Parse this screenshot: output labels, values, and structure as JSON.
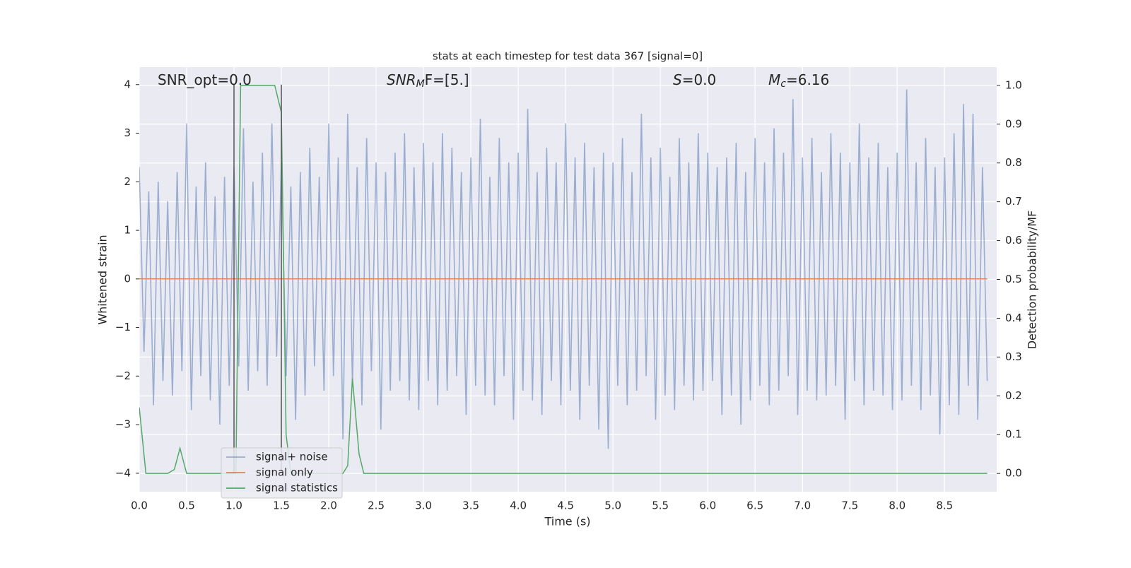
{
  "chart_data": {
    "type": "line",
    "title": "stats at each timestep for test data 367 [signal=0]",
    "xlabel": "Time (s)",
    "ylabel": "Whitened strain",
    "y2label": "Detection probability/MF",
    "annotations": [
      {
        "segments": [
          {
            "text": "SNR_opt=0.0",
            "style": "normal"
          }
        ]
      },
      {
        "segments": [
          {
            "text": "SNR",
            "style": "italic"
          },
          {
            "text": "M",
            "style": "sub"
          },
          {
            "text": "F=[5.]",
            "style": "normal"
          }
        ]
      },
      {
        "segments": [
          {
            "text": "S",
            "style": "italic"
          },
          {
            "text": "=0.0",
            "style": "normal"
          }
        ]
      },
      {
        "segments": [
          {
            "text": "M",
            "style": "italic"
          },
          {
            "text": "c",
            "style": "sub"
          },
          {
            "text": "=6.16",
            "style": "normal"
          }
        ]
      }
    ],
    "vlines": [
      1.0,
      1.5
    ],
    "vline_color": "#555555",
    "xlim": [
      0,
      9.05
    ],
    "ylim": [
      -4.38,
      4.36
    ],
    "y2lim": [
      -0.047,
      1.047
    ],
    "xticks": [
      {
        "value": 0,
        "label": "0.0"
      },
      0.5,
      {
        "value": 1,
        "label": "1.0"
      },
      1.5,
      {
        "value": 2,
        "label": "2.0"
      },
      2.5,
      {
        "value": 3,
        "label": "3.0"
      },
      3.5,
      {
        "value": 4,
        "label": "4.0"
      },
      4.5,
      {
        "value": 5,
        "label": "5.0"
      },
      5.5,
      {
        "value": 6,
        "label": "6.0"
      },
      6.5,
      {
        "value": 7,
        "label": "7.0"
      },
      7.5,
      {
        "value": 8,
        "label": "8.0"
      },
      8.5
    ],
    "yticks": [
      {
        "value": -4,
        "label": "−4"
      },
      {
        "value": -3,
        "label": "−3"
      },
      {
        "value": -2,
        "label": "−2"
      },
      {
        "value": -1,
        "label": "−1"
      },
      0,
      1,
      2,
      3,
      4
    ],
    "y2ticks": [
      {
        "value": 0,
        "label": "0.0"
      },
      0.1,
      0.2,
      0.3,
      0.4,
      0.5,
      0.6,
      0.7,
      0.8,
      0.9,
      {
        "value": 1,
        "label": "1.0"
      }
    ],
    "grid": true,
    "series": [
      {
        "name": "signal+ noise",
        "color": "#4c72b0",
        "opacity": 0.5,
        "x": [
          0,
          0.05,
          0.1,
          0.15,
          0.2,
          0.25,
          0.3,
          0.35,
          0.4,
          0.45,
          0.5,
          0.55,
          0.6,
          0.65,
          0.7,
          0.75,
          0.8,
          0.85,
          0.9,
          0.95,
          1,
          1.05,
          1.1,
          1.15,
          1.2,
          1.25,
          1.3,
          1.35,
          1.4,
          1.45,
          1.5,
          1.55,
          1.6,
          1.65,
          1.7,
          1.75,
          1.8,
          1.85,
          1.9,
          1.95,
          2,
          2.05,
          2.1,
          2.15,
          2.2,
          2.25,
          2.3,
          2.35,
          2.4,
          2.45,
          2.5,
          2.55,
          2.6,
          2.65,
          2.7,
          2.75,
          2.8,
          2.85,
          2.9,
          2.95,
          3,
          3.05,
          3.1,
          3.15,
          3.2,
          3.25,
          3.3,
          3.35,
          3.4,
          3.45,
          3.5,
          3.55,
          3.6,
          3.65,
          3.7,
          3.75,
          3.8,
          3.85,
          3.9,
          3.95,
          4,
          4.05,
          4.1,
          4.15,
          4.2,
          4.25,
          4.3,
          4.35,
          4.4,
          4.45,
          4.5,
          4.55,
          4.6,
          4.65,
          4.7,
          4.75,
          4.8,
          4.85,
          4.9,
          4.95,
          5,
          5.05,
          5.1,
          5.15,
          5.2,
          5.25,
          5.3,
          5.35,
          5.4,
          5.45,
          5.5,
          5.55,
          5.6,
          5.65,
          5.7,
          5.75,
          5.8,
          5.85,
          5.9,
          5.95,
          6,
          6.05,
          6.1,
          6.15,
          6.2,
          6.25,
          6.3,
          6.35,
          6.4,
          6.45,
          6.5,
          6.55,
          6.6,
          6.65,
          6.7,
          6.75,
          6.8,
          6.85,
          6.9,
          6.95,
          7,
          7.05,
          7.1,
          7.15,
          7.2,
          7.25,
          7.3,
          7.35,
          7.4,
          7.45,
          7.5,
          7.55,
          7.6,
          7.65,
          7.7,
          7.75,
          7.8,
          7.85,
          7.9,
          7.95,
          8,
          8.05,
          8.1,
          8.15,
          8.2,
          8.25,
          8.3,
          8.35,
          8.4,
          8.45,
          8.5,
          8.55,
          8.6,
          8.65,
          8.7,
          8.75,
          8.8,
          8.85,
          8.9,
          8.95
        ],
        "values": [
          2.3,
          -1.5,
          1.8,
          -2.6,
          2.0,
          -2.1,
          1.6,
          -2.4,
          2.2,
          -1.9,
          3.2,
          -2.7,
          1.9,
          -2.0,
          2.4,
          -2.5,
          1.7,
          -3.0,
          2.1,
          -2.2,
          2.3,
          -1.8,
          3.1,
          -2.3,
          2.0,
          -1.9,
          2.6,
          -2.2,
          3.2,
          -1.6,
          2.4,
          -2.0,
          1.9,
          -2.9,
          2.2,
          -2.4,
          2.7,
          -1.8,
          2.1,
          -2.3,
          3.2,
          -2.0,
          2.5,
          -3.3,
          3.4,
          -2.2,
          2.3,
          -2.6,
          2.9,
          -1.9,
          2.4,
          -3.1,
          2.2,
          -2.3,
          2.6,
          -2.1,
          3.0,
          -2.5,
          2.3,
          -2.7,
          2.8,
          -2.1,
          2.4,
          -2.6,
          3.0,
          -2.3,
          2.7,
          -2.0,
          2.2,
          -2.8,
          2.5,
          -2.2,
          3.3,
          -2.4,
          2.1,
          -2.6,
          2.9,
          -2.0,
          2.4,
          -2.9,
          2.6,
          -2.3,
          3.5,
          -2.5,
          2.2,
          -2.8,
          2.7,
          -2.1,
          2.4,
          -2.6,
          3.2,
          -2.3,
          2.5,
          -2.9,
          2.8,
          -2.2,
          2.3,
          -3.1,
          2.6,
          -3.5,
          2.4,
          -2.2,
          2.9,
          -2.6,
          2.2,
          -2.3,
          3.4,
          -2.0,
          2.5,
          -2.9,
          2.7,
          -2.4,
          2.1,
          -2.7,
          2.9,
          -2.2,
          2.4,
          -2.5,
          3.0,
          -2.3,
          2.6,
          -2.1,
          2.3,
          -2.8,
          2.5,
          -2.4,
          2.8,
          -3.0,
          2.2,
          -2.5,
          2.9,
          -2.2,
          2.4,
          -2.6,
          3.1,
          -2.3,
          2.6,
          -2.0,
          3.7,
          -2.8,
          2.5,
          -2.3,
          2.9,
          -2.5,
          2.2,
          -2.4,
          3.0,
          -2.2,
          2.6,
          -2.9,
          2.4,
          -2.1,
          3.2,
          -2.6,
          2.5,
          -2.3,
          2.8,
          -2.4,
          2.3,
          -2.7,
          2.6,
          -2.5,
          3.9,
          -2.2,
          2.4,
          -2.7,
          2.9,
          -2.4,
          2.3,
          -3.2,
          2.5,
          -2.6,
          3.0,
          -2.8,
          3.6,
          -2.2,
          3.4,
          -2.9,
          2.3,
          -2.1
        ]
      },
      {
        "name": "signal only",
        "color": "#dd8452",
        "opacity": 1,
        "x": [
          0,
          8.95
        ],
        "values": [
          0,
          0
        ]
      },
      {
        "name": "signal statistics",
        "color": "#55a868",
        "opacity": 1,
        "axis": "y2",
        "x": [
          0,
          0.07,
          0.1,
          0.3,
          0.37,
          0.43,
          0.5,
          1.0,
          1.02,
          1.07,
          1.43,
          1.5,
          1.55,
          1.6,
          2.15,
          2.2,
          2.25,
          2.32,
          2.37,
          8.95
        ],
        "values": [
          0.17,
          0.0,
          0.0,
          0.0,
          0.01,
          0.065,
          0.0,
          0.0,
          0.0,
          1.0,
          1.0,
          0.93,
          0.1,
          0.0,
          0.0,
          0.02,
          0.245,
          0.05,
          0.0,
          0.0
        ]
      }
    ]
  }
}
